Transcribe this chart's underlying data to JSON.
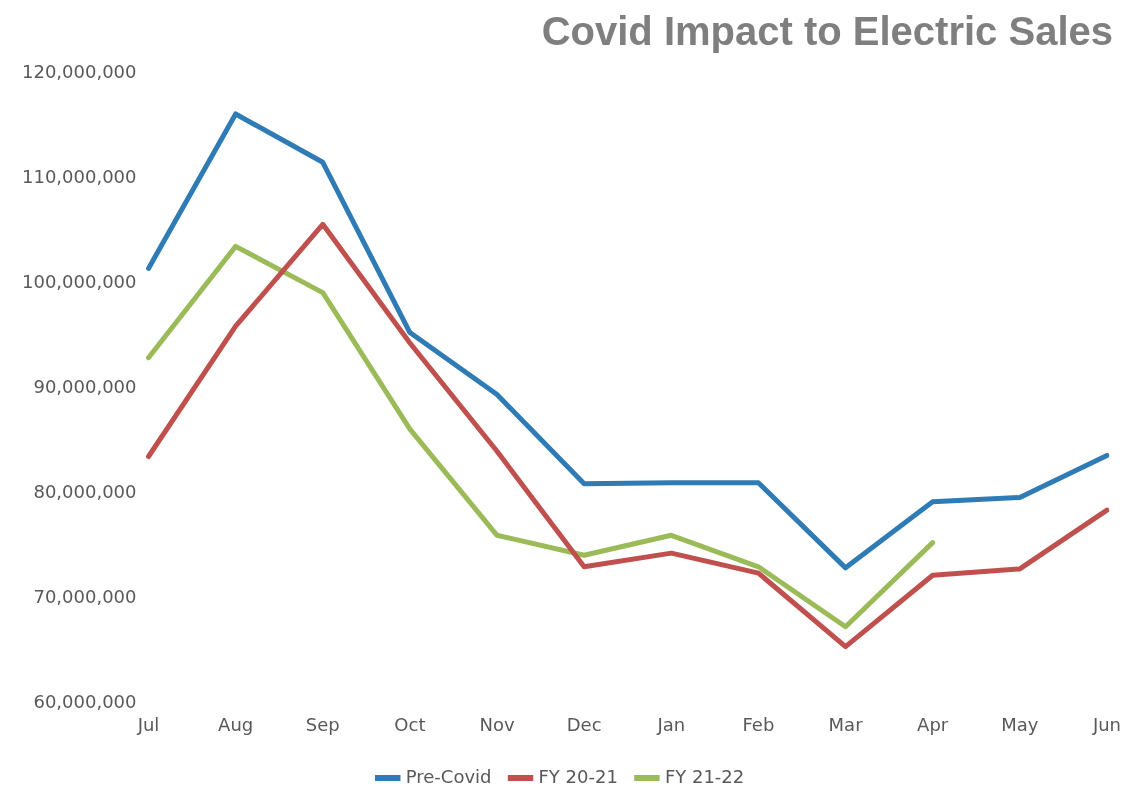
{
  "chart_data": {
    "type": "line",
    "title": "Covid Impact to Electric Sales",
    "categories": [
      "Jul",
      "Aug",
      "Sep",
      "Oct",
      "Nov",
      "Dec",
      "Jan",
      "Feb",
      "Mar",
      "Apr",
      "May",
      "Jun"
    ],
    "series": [
      {
        "name": "Pre-Covid",
        "color": "#2e7bb5",
        "values": [
          101400000,
          116100000,
          111500000,
          95300000,
          89400000,
          80900000,
          81000000,
          81000000,
          72900000,
          79200000,
          79600000,
          83600000
        ]
      },
      {
        "name": "FY 20-21",
        "color": "#c0504d",
        "values": [
          83500000,
          95900000,
          105600000,
          94300000,
          84000000,
          73000000,
          74300000,
          72400000,
          65400000,
          72200000,
          72800000,
          78400000
        ]
      },
      {
        "name": "FY 21-22",
        "color": "#9bbb59",
        "values": [
          92900000,
          103500000,
          99100000,
          86100000,
          76000000,
          74100000,
          76000000,
          73000000,
          67300000,
          75300000,
          null,
          null
        ]
      }
    ],
    "ylim": [
      60000000,
      120000000
    ],
    "yticks": [
      {
        "value": 60000000,
        "label": "60,000,000"
      },
      {
        "value": 70000000,
        "label": "70,000,000"
      },
      {
        "value": 80000000,
        "label": "80,000,000"
      },
      {
        "value": 90000000,
        "label": "90,000,000"
      },
      {
        "value": 100000000,
        "label": "100,000,000"
      },
      {
        "value": 110000000,
        "label": "110,000,000"
      },
      {
        "value": 120000000,
        "label": "120,000,000"
      }
    ],
    "legend": "bottom",
    "marker": "none",
    "line_style": "solid"
  }
}
